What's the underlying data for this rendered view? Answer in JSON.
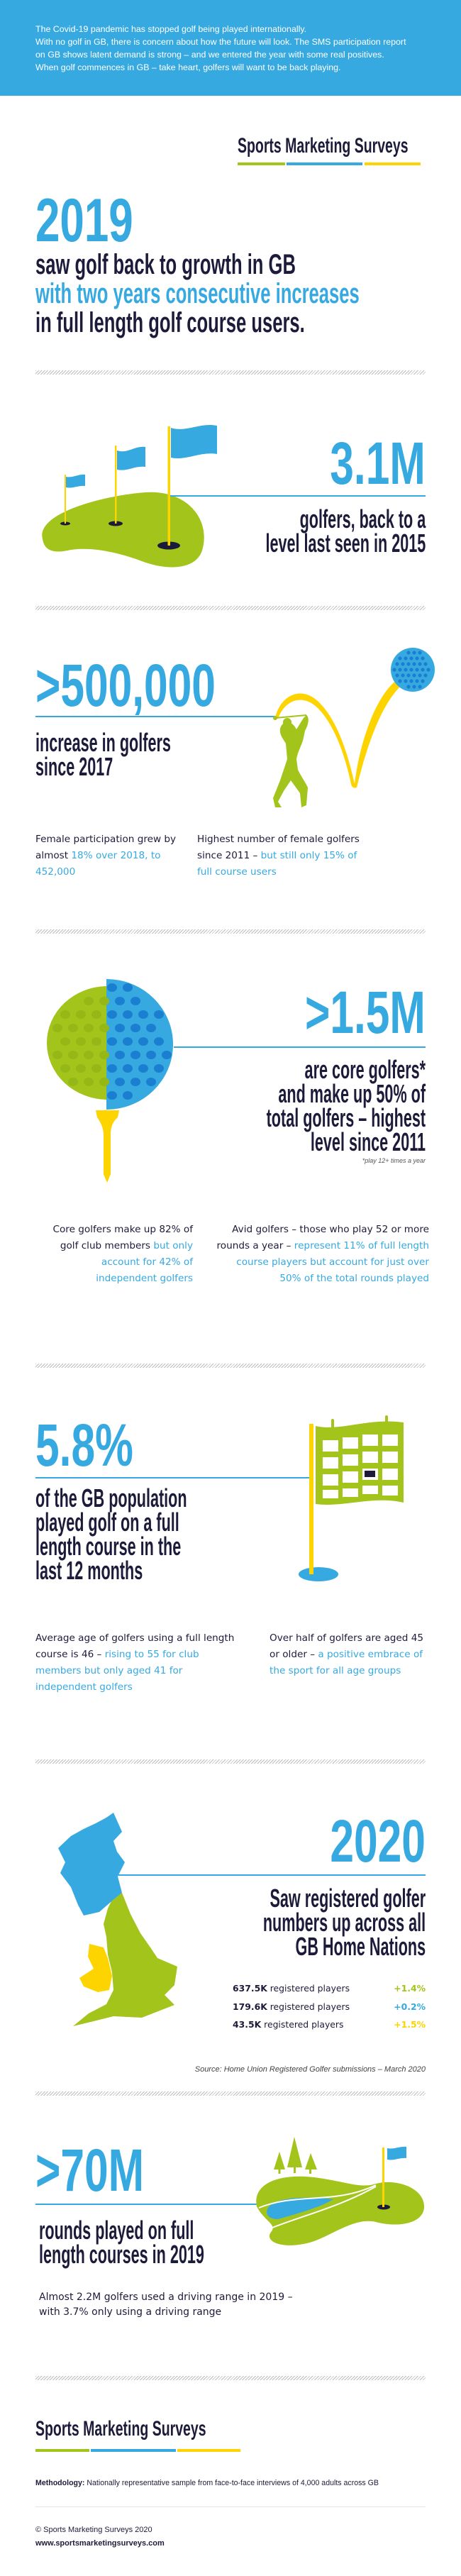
{
  "intro": {
    "lines": [
      "The Covid-19 pandemic has stopped golf being played internationally.",
      "With no golf in GB, there is concern about how the future will look. The SMS participation report",
      "on GB shows latent demand is strong – and we entered the year with some real positives.",
      "When golf commences in GB – take heart, golfers will want to be back playing."
    ]
  },
  "brand": {
    "name": "Sports Marketing Surveys",
    "colors": {
      "green": "#a3c41a",
      "blue": "#36a9e1",
      "yellow": "#fdd400",
      "navy": "#1d1b3a"
    }
  },
  "hero": {
    "year": "2019",
    "line1": "saw golf back to growth in GB",
    "line2": "with two years consecutive increases",
    "line3": "in full length golf course users."
  },
  "stat1": {
    "value": "3.1M",
    "lines": [
      "golfers, back to a",
      "level last seen in 2015"
    ],
    "icon": "flags-on-green-icon"
  },
  "stat2": {
    "value": ">500,000",
    "lines": [
      "increase in golfers",
      "since 2017"
    ],
    "icon": "golfer-swing-icon",
    "notes": [
      {
        "dark": "Female participation grew by almost ",
        "blue": "18% over 2018, to 452,000"
      },
      {
        "dark": "Highest number of female golfers since 2011 – ",
        "blue": "but still only 15% of full course users"
      }
    ]
  },
  "stat3": {
    "value": ">1.5M",
    "lines": [
      "are core golfers*",
      "and make up 50% of",
      "total golfers – highest",
      "level since 2011"
    ],
    "footnote": "*play 12+ times a year",
    "icon": "golf-ball-on-tee-icon",
    "notes": [
      {
        "dark": "Core golfers make up 82% of golf club members ",
        "blue": "but only account for 42% of independent golfers"
      },
      {
        "dark": "Avid golfers – those who play 52 or more rounds a year – ",
        "blue": "represent 11% of full length course players but account for just over 50% of the total rounds played"
      }
    ]
  },
  "stat4": {
    "value": "5.8%",
    "lines": [
      "of the GB population",
      "played golf on a full",
      "length course in the",
      "last 12 months"
    ],
    "icon": "calendar-flag-icon",
    "notes": [
      {
        "dark": "Average age of golfers using a full length course is 46 – ",
        "blue": "rising to 55 for club members but only aged 41 for independent golfers"
      },
      {
        "dark": "Over half of golfers are aged 45 or older – ",
        "blue": "a positive embrace of the sport for all age groups"
      }
    ]
  },
  "stat5": {
    "value": "2020",
    "lines": [
      "Saw registered golfer",
      "numbers up across all",
      "GB Home Nations"
    ],
    "icon": "gb-map-icon",
    "rows": [
      {
        "count": "637.5K",
        "label": " registered players",
        "change": "+1.4%",
        "color": "#a3c41a"
      },
      {
        "count": "179.6K",
        "label": " registered players",
        "change": "+0.2%",
        "color": "#36a9e1"
      },
      {
        "count": "43.5K",
        "label": " registered players",
        "change": "+1.5%",
        "color": "#fdd400"
      }
    ],
    "source": "Source: Home Union Registered Golfer submissions – March 2020"
  },
  "stat6": {
    "value": ">70M",
    "lines": [
      "rounds played on full",
      "length courses in 2019"
    ],
    "icon": "golf-course-icon",
    "note": "Almost 2.2M golfers used a driving range in 2019 – with 3.7% only using a driving range"
  },
  "footer": {
    "methodology_label": "Methodology:",
    "methodology": " Nationally representative sample from face-to-face interviews of 4,000 adults across GB",
    "copyright": "© Sports Marketing Surveys 2020",
    "url": "www.sportsmarketingsurveys.com"
  }
}
